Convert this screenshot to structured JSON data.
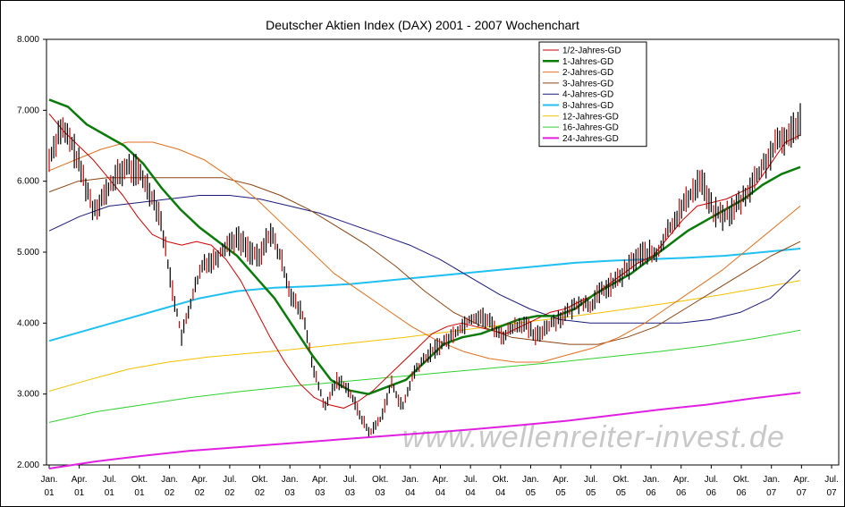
{
  "chart_data": {
    "type": "line",
    "title": "Deutscher Aktien Index (DAX) 2001 - 2007 Wochenchart",
    "ylim": [
      2000,
      8000
    ],
    "yticks": [
      "2.000",
      "3.000",
      "4.000",
      "5.000",
      "6.000",
      "7.000",
      "8.000"
    ],
    "ytick_values": [
      2000,
      3000,
      4000,
      5000,
      6000,
      7000,
      8000
    ],
    "xticks": [
      {
        "m": "Jan.",
        "y": "01"
      },
      {
        "m": "Apr.",
        "y": "01"
      },
      {
        "m": "Jul.",
        "y": "01"
      },
      {
        "m": "Okt.",
        "y": "01"
      },
      {
        "m": "Jan.",
        "y": "02"
      },
      {
        "m": "Apr.",
        "y": "02"
      },
      {
        "m": "Jul.",
        "y": "02"
      },
      {
        "m": "Okt.",
        "y": "02"
      },
      {
        "m": "Jan.",
        "y": "03"
      },
      {
        "m": "Apr.",
        "y": "03"
      },
      {
        "m": "Jul.",
        "y": "03"
      },
      {
        "m": "Okt.",
        "y": "03"
      },
      {
        "m": "Jan.",
        "y": "04"
      },
      {
        "m": "Apr.",
        "y": "04"
      },
      {
        "m": "Jul.",
        "y": "04"
      },
      {
        "m": "Okt.",
        "y": "04"
      },
      {
        "m": "Jan.",
        "y": "05"
      },
      {
        "m": "Apr.",
        "y": "05"
      },
      {
        "m": "Jul.",
        "y": "05"
      },
      {
        "m": "Okt.",
        "y": "05"
      },
      {
        "m": "Jan.",
        "y": "06"
      },
      {
        "m": "Apr.",
        "y": "06"
      },
      {
        "m": "Jul.",
        "y": "06"
      },
      {
        "m": "Okt.",
        "y": "06"
      },
      {
        "m": "Jan.",
        "y": "07"
      },
      {
        "m": "Apr.",
        "y": "07"
      },
      {
        "m": "Jul.",
        "y": "07"
      }
    ],
    "grid": false,
    "legend_position": "top-right",
    "watermark": "www.wellenreiter-invest.de",
    "price": {
      "name": "DAX",
      "color": "#000000",
      "values": [
        6300,
        6750,
        6550,
        6100,
        5600,
        5800,
        6050,
        6200,
        6150,
        5900,
        5550,
        4600,
        3800,
        4400,
        4850,
        4900,
        5100,
        5200,
        5050,
        4900,
        5300,
        4900,
        4350,
        4100,
        3300,
        2800,
        3200,
        3100,
        2750,
        2450,
        2650,
        3150,
        2800,
        3300,
        3500,
        3650,
        3750,
        3900,
        4050,
        4100,
        4000,
        3800,
        3950,
        4000,
        3800,
        3950,
        4050,
        4150,
        4300,
        4250,
        4450,
        4550,
        4700,
        4900,
        5000,
        4950,
        5300,
        5550,
        5800,
        6050,
        5600,
        5500,
        5600,
        5800,
        6050,
        6300,
        6550,
        6650,
        6900
      ]
    },
    "series": [
      {
        "name": "1/2-Jahres-GD",
        "color": "#cc0000",
        "width": 1,
        "values": [
          6950,
          6700,
          6500,
          6300,
          6050,
          5800,
          5500,
          5250,
          5150,
          5100,
          5150,
          5100,
          4900,
          4600,
          4200,
          3800,
          3450,
          3150,
          2950,
          2850,
          2800,
          2900,
          3050,
          3250,
          3450,
          3650,
          3850,
          3950,
          4000,
          3950,
          3900,
          3850,
          3950,
          4050,
          4150,
          4200,
          4300,
          4400,
          4550,
          4700,
          4850,
          4950,
          5200,
          5450,
          5650,
          5700,
          5750,
          5850,
          5950,
          6250,
          6550,
          6650
        ]
      },
      {
        "name": "1-Jahres-GD",
        "color": "#0a7a0a",
        "width": 2.5,
        "values": [
          7150,
          7050,
          6800,
          6650,
          6500,
          6250,
          5900,
          5600,
          5350,
          5150,
          4950,
          4650,
          4350,
          3950,
          3550,
          3200,
          3050,
          3000,
          3100,
          3200,
          3450,
          3700,
          3800,
          3850,
          3950,
          4050,
          4100,
          4100,
          4200,
          4400,
          4550,
          4700,
          4900,
          5100,
          5300,
          5450,
          5600,
          5750,
          5950,
          6100,
          6200
        ]
      },
      {
        "name": "2-Jahres-GD",
        "color": "#e07020",
        "width": 1,
        "values": [
          6150,
          6300,
          6450,
          6550,
          6550,
          6450,
          6300,
          6050,
          5750,
          5400,
          5050,
          4700,
          4450,
          4200,
          3950,
          3750,
          3600,
          3500,
          3450,
          3450,
          3550,
          3650,
          3800,
          4000,
          4250,
          4500,
          4750,
          5050,
          5350,
          5650
        ]
      },
      {
        "name": "3-Jahres-GD",
        "color": "#8b4513",
        "width": 1,
        "values": [
          5850,
          6000,
          6050,
          6050,
          6050,
          6050,
          6050,
          5950,
          5800,
          5600,
          5350,
          5100,
          4800,
          4450,
          4150,
          3950,
          3800,
          3750,
          3700,
          3700,
          3800,
          3950,
          4200,
          4450,
          4700,
          4950,
          5150
        ]
      },
      {
        "name": "4-Jahres-GD",
        "color": "#1a1a7a",
        "width": 1,
        "values": [
          5300,
          5500,
          5650,
          5700,
          5750,
          5800,
          5800,
          5750,
          5650,
          5550,
          5400,
          5250,
          5100,
          4900,
          4650,
          4400,
          4200,
          4050,
          4000,
          4000,
          4000,
          4000,
          4050,
          4150,
          4350,
          4750
        ]
      },
      {
        "name": "8-Jahres-GD",
        "color": "#20c0f0",
        "width": 2,
        "values": [
          3750,
          3900,
          4050,
          4200,
          4350,
          4450,
          4500,
          4520,
          4550,
          4600,
          4650,
          4700,
          4750,
          4800,
          4850,
          4880,
          4900,
          4920,
          4950,
          5000,
          5050
        ]
      },
      {
        "name": "12-Jahres-GD",
        "color": "#f0c000",
        "width": 1,
        "values": [
          3040,
          3200,
          3350,
          3450,
          3520,
          3570,
          3620,
          3680,
          3740,
          3800,
          3870,
          3940,
          4010,
          4080,
          4150,
          4230,
          4310,
          4400,
          4500,
          4600
        ]
      },
      {
        "name": "16-Jahres-GD",
        "color": "#30d030",
        "width": 1,
        "values": [
          2600,
          2750,
          2850,
          2950,
          3030,
          3100,
          3160,
          3220,
          3280,
          3340,
          3400,
          3460,
          3530,
          3600,
          3680,
          3780,
          3900
        ]
      },
      {
        "name": "24-Jahres-GD",
        "color": "#e020e0",
        "width": 2,
        "values": [
          1950,
          2050,
          2130,
          2200,
          2250,
          2300,
          2350,
          2400,
          2450,
          2500,
          2560,
          2620,
          2700,
          2780,
          2850,
          2940,
          3020
        ]
      }
    ]
  }
}
